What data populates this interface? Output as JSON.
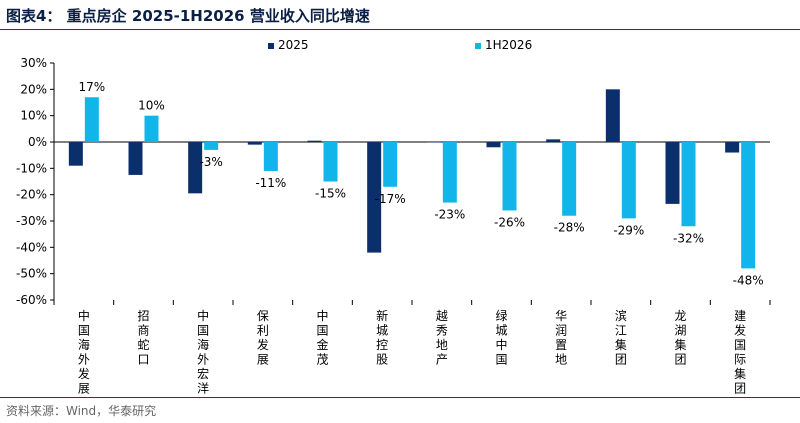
{
  "title": "图表4：  重点房企 2025-1H2026 营业收入同比增速",
  "source": "资料来源：Wind，华泰研究",
  "colors": {
    "series_2025": "#0b2f6b",
    "series_1h2026": "#12b5ea",
    "axis": "#000000",
    "title": "#0a1f44"
  },
  "chart_data": {
    "type": "bar",
    "categories": [
      "中国海外发展",
      "招商蛇口",
      "中国海外宏洋",
      "保利发展",
      "中国金茂",
      "新城控股",
      "越秀地产",
      "绿城中国",
      "华润置地",
      "滨江集团",
      "龙湖集团",
      "建发国际集团"
    ],
    "series": [
      {
        "name": "2025",
        "values": [
          -9,
          -12.5,
          -19.5,
          -1,
          0.5,
          -42,
          0,
          -2,
          1,
          20,
          -23.5,
          -4
        ],
        "show_labels": false
      },
      {
        "name": "1H2026",
        "values": [
          17,
          10,
          -3,
          -11,
          -15,
          -17,
          -23,
          -26,
          -28,
          -29,
          -32,
          -48
        ],
        "show_labels": true
      }
    ],
    "data_labels": [
      "17%",
      "10%",
      "-3%",
      "-11%",
      "-15%",
      "-17%",
      "-23%",
      "-26%",
      "-28%",
      "-29%",
      "-32%",
      "-48%"
    ],
    "ylim": [
      -60,
      30
    ],
    "yticks": [
      30,
      20,
      10,
      0,
      -10,
      -20,
      -30,
      -40,
      -50,
      -60
    ],
    "ytick_labels": [
      "30%",
      "20%",
      "10%",
      "0%",
      "-10%",
      "-20%",
      "-30%",
      "-40%",
      "-50%",
      "-60%"
    ],
    "xlabel": "",
    "ylabel": "",
    "grid": false,
    "legend_position": "top-center"
  }
}
